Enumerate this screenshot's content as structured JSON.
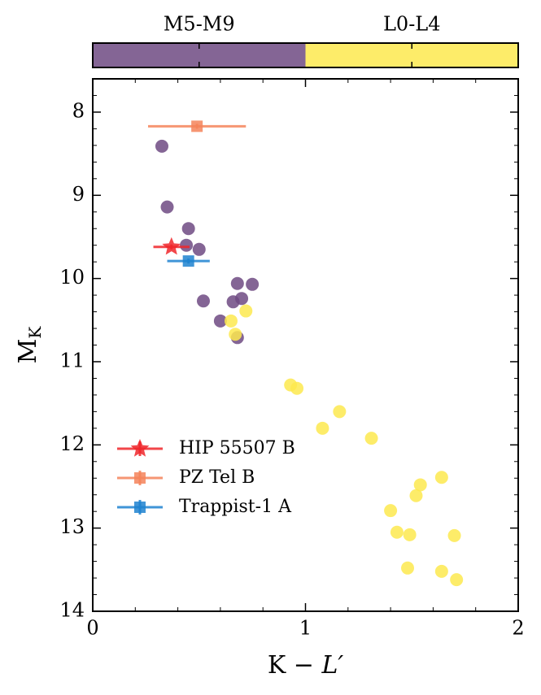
{
  "chart_data": {
    "type": "scatter",
    "xlabel": [
      "K − ",
      "L′"
    ],
    "ylabel": [
      "M",
      "K"
    ],
    "xlim": [
      0,
      2
    ],
    "xticks": [
      0,
      1,
      2
    ],
    "xminorticks": [
      0.2,
      0.4,
      0.6,
      0.8,
      1.2,
      1.4,
      1.6,
      1.8
    ],
    "ylim": [
      7.6,
      14
    ],
    "y_inverted": true,
    "yticks": [
      8,
      9,
      10,
      11,
      12,
      13,
      14
    ],
    "yminorticks": [
      7.8,
      8.2,
      8.4,
      8.6,
      8.8,
      9.2,
      9.4,
      9.6,
      9.8,
      10.2,
      10.4,
      10.6,
      10.8,
      11.2,
      11.4,
      11.6,
      11.8,
      12.2,
      12.4,
      12.6,
      12.8,
      13.2,
      13.4,
      13.6,
      13.8
    ],
    "legend": "lower left",
    "colorbar_series": [
      0,
      1
    ],
    "series": [
      {
        "name": "M5-M9",
        "color": "#6f4a82",
        "marker": "circle",
        "x": [
          0.325,
          0.35,
          0.45,
          0.44,
          0.5,
          0.68,
          0.75,
          0.66,
          0.7,
          0.52,
          0.6,
          0.68
        ],
        "y": [
          8.41,
          9.14,
          9.4,
          9.6,
          9.65,
          10.06,
          10.07,
          10.28,
          10.24,
          10.27,
          10.51,
          10.71
        ]
      },
      {
        "name": "L0-L4",
        "color": "#fde94f",
        "marker": "circle",
        "x": [
          0.65,
          0.72,
          0.67,
          0.93,
          0.96,
          1.16,
          1.08,
          1.31,
          1.64,
          1.54,
          1.52,
          1.4,
          1.43,
          1.49,
          1.7,
          1.48,
          1.64,
          1.71
        ],
        "y": [
          10.51,
          10.39,
          10.67,
          11.28,
          11.32,
          11.6,
          11.8,
          11.92,
          12.39,
          12.48,
          12.61,
          12.79,
          13.05,
          13.08,
          13.09,
          13.48,
          13.52,
          13.62
        ]
      },
      {
        "name": "HIP 55507 B",
        "color": "#f0262a",
        "marker": "star",
        "legend": true,
        "x": [
          0.37
        ],
        "y": [
          9.62
        ],
        "xerr": [
          0.085
        ],
        "yerr": [
          0.03
        ]
      },
      {
        "name": "PZ Tel B",
        "color": "#f4845a",
        "marker": "square",
        "legend": true,
        "x": [
          0.49
        ],
        "y": [
          8.17
        ],
        "xerr": [
          0.23
        ],
        "yerr": [
          0.03
        ]
      },
      {
        "name": "Trappist-1 A",
        "color": "#1f82d0",
        "marker": "square",
        "legend": true,
        "x": [
          0.45
        ],
        "y": [
          9.79
        ],
        "xerr": [
          0.1
        ],
        "yerr": [
          0.03
        ]
      }
    ]
  }
}
